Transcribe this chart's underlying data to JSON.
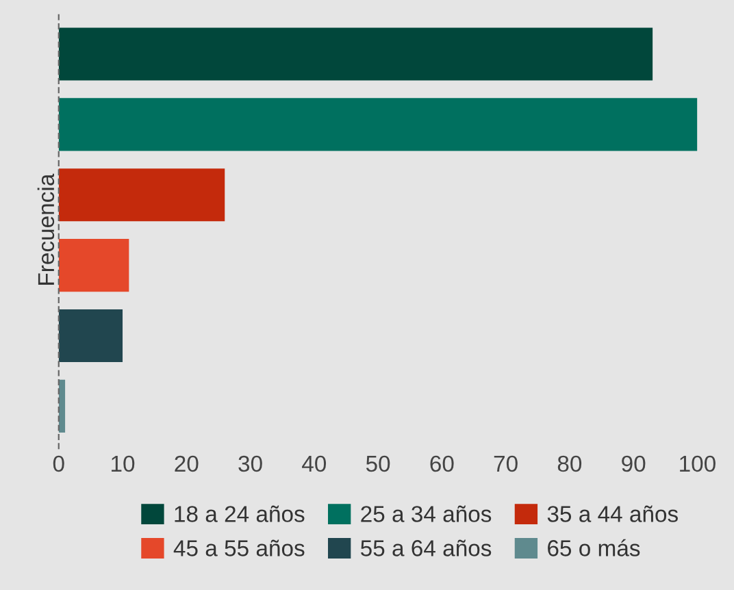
{
  "chart_data": {
    "type": "bar",
    "orientation": "horizontal",
    "ylabel": "Frecuencia",
    "categories": [
      null,
      null,
      null,
      null,
      null,
      null
    ],
    "series": [
      {
        "name": "18 a 24 años",
        "color": "#01473b",
        "values": [
          93,
          null,
          null,
          null,
          null,
          null
        ]
      },
      {
        "name": "25 a 34 años",
        "color": "#00705f",
        "values": [
          null,
          100,
          null,
          null,
          null,
          null
        ]
      },
      {
        "name": "35 a 44 años",
        "color": "#c42a0c",
        "values": [
          null,
          null,
          26,
          null,
          null,
          null
        ]
      },
      {
        "name": "45 a 55 años",
        "color": "#e5482a",
        "values": [
          null,
          null,
          null,
          11,
          null,
          null
        ]
      },
      {
        "name": "55 a 64 años",
        "color": "#21464f",
        "values": [
          null,
          null,
          null,
          null,
          10,
          null
        ]
      },
      {
        "name": "65 o más",
        "color": "#5f8a8e",
        "values": [
          null,
          null,
          null,
          null,
          null,
          1
        ]
      }
    ],
    "xlim": [
      0,
      100
    ],
    "xticks": [
      0,
      10,
      20,
      30,
      40,
      50,
      60,
      70,
      80,
      90,
      100
    ],
    "tick_labels": "x",
    "legend": "bottom",
    "grid": false
  }
}
